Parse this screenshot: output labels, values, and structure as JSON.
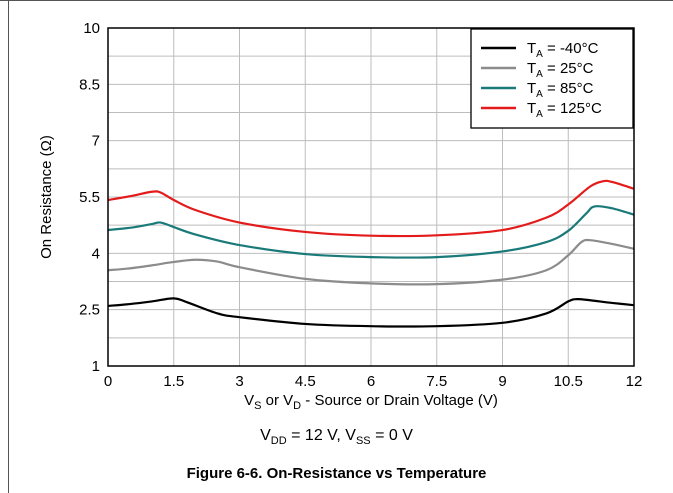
{
  "chart_data": {
    "type": "line",
    "ylabel": "On Resistance (Ω)",
    "xlabel": "V_S or V_D - Source or Drain Voltage (V)",
    "xlim": [
      0,
      12
    ],
    "ylim": [
      1,
      10
    ],
    "xticks": [
      "0",
      "1.5",
      "3",
      "4.5",
      "6",
      "7.5",
      "9",
      "10.5",
      "12"
    ],
    "xtick_values": [
      0,
      1.5,
      3,
      4.5,
      6,
      7.5,
      9,
      10.5,
      12
    ],
    "yticks": [
      "1",
      "2.5",
      "4",
      "5.5",
      "7",
      "8.5",
      "10"
    ],
    "ytick_values": [
      1,
      2.5,
      4,
      5.5,
      7,
      8.5,
      10
    ],
    "grid": "on",
    "legend_position": "top-right",
    "series": [
      {
        "name": "T_A = -40°C",
        "color": "#000000",
        "x": [
          0,
          0.5,
          1,
          1.5,
          1.8,
          2.5,
          3,
          4.5,
          6,
          7.5,
          9,
          10,
          10.5,
          10.7,
          11,
          11.5,
          12
        ],
        "y": [
          2.6,
          2.65,
          2.72,
          2.8,
          2.7,
          2.4,
          2.3,
          2.12,
          2.06,
          2.06,
          2.15,
          2.4,
          2.72,
          2.78,
          2.75,
          2.68,
          2.62
        ]
      },
      {
        "name": "T_A = 25°C",
        "color": "#8c8c8c",
        "x": [
          0,
          0.5,
          1,
          1.5,
          2,
          2.5,
          3,
          4.5,
          6,
          7.5,
          9,
          10,
          10.5,
          10.8,
          11,
          11.5,
          12
        ],
        "y": [
          3.55,
          3.6,
          3.68,
          3.77,
          3.83,
          3.78,
          3.63,
          3.32,
          3.2,
          3.18,
          3.3,
          3.55,
          3.95,
          4.3,
          4.35,
          4.25,
          4.12
        ]
      },
      {
        "name": "T_A = 85°C",
        "color": "#1a7a7a",
        "x": [
          0,
          0.5,
          1,
          1.2,
          1.5,
          2,
          3,
          4.5,
          6,
          7.5,
          9,
          10,
          10.5,
          10.9,
          11.1,
          11.5,
          12
        ],
        "y": [
          4.62,
          4.68,
          4.78,
          4.82,
          4.7,
          4.5,
          4.22,
          3.98,
          3.9,
          3.9,
          4.05,
          4.3,
          4.6,
          5.05,
          5.25,
          5.2,
          5.03
        ]
      },
      {
        "name": "T_A = 125°C",
        "color": "#e31b1b",
        "x": [
          0,
          0.5,
          1,
          1.2,
          1.5,
          2,
          3,
          4.5,
          6,
          7.5,
          9,
          10,
          10.5,
          11,
          11.3,
          11.5,
          12
        ],
        "y": [
          5.42,
          5.52,
          5.64,
          5.62,
          5.42,
          5.15,
          4.82,
          4.57,
          4.47,
          4.48,
          4.62,
          4.95,
          5.3,
          5.78,
          5.92,
          5.9,
          5.72
        ]
      }
    ]
  },
  "conditions_parts": {
    "v1": "V",
    "s1": "DD",
    "mid": " = 12 V, V",
    "s2": "SS",
    "end": " = 0 V"
  },
  "xlabel_parts": {
    "a": "V",
    "sa": "S",
    "b": " or V",
    "sb": "D",
    "c": " - Source or Drain Voltage (V)"
  },
  "legend_parts": [
    {
      "pre": "T",
      "sub": "A",
      "post": " = -40°C"
    },
    {
      "pre": "T",
      "sub": "A",
      "post": " = 25°C"
    },
    {
      "pre": "T",
      "sub": "A",
      "post": " = 85°C"
    },
    {
      "pre": "T",
      "sub": "A",
      "post": " = 125°C"
    }
  ],
  "caption": "Figure 6-6. On-Resistance vs Temperature"
}
